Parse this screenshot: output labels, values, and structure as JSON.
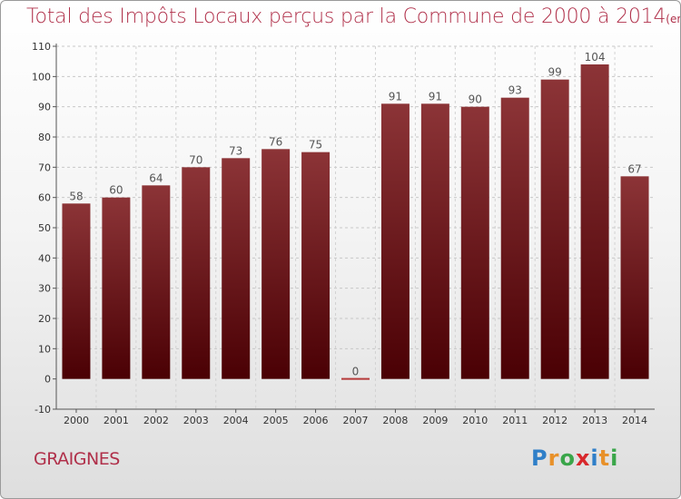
{
  "title": "Total des Impôts Locaux perçus par la Commune de 2000 à 2014",
  "subtitle": "(en milliers d'€)",
  "commune": "GRAIGNES",
  "logo": {
    "letters": [
      "P",
      "r",
      "o",
      "x",
      "i",
      "t",
      "i"
    ],
    "colors": [
      "#2f7fc8",
      "#e8912a",
      "#3aa64a",
      "#d8282c",
      "#2f7fc8",
      "#e8912a",
      "#3aa64a"
    ]
  },
  "chart_data": {
    "type": "bar",
    "categories": [
      "2000",
      "2001",
      "2002",
      "2003",
      "2004",
      "2005",
      "2006",
      "2007",
      "2008",
      "2009",
      "2010",
      "2011",
      "2012",
      "2013",
      "2014"
    ],
    "values": [
      58,
      60,
      64,
      70,
      73,
      76,
      75,
      0,
      91,
      91,
      90,
      93,
      99,
      104,
      67
    ],
    "ylim": [
      -10,
      110
    ],
    "yticks": [
      -10,
      0,
      10,
      20,
      30,
      40,
      50,
      60,
      70,
      80,
      90,
      100,
      110
    ],
    "grid": true,
    "colors": {
      "bar_top": "#8c3437",
      "bar_bottom": "#4a0004",
      "label": "#555555",
      "zero_line": "#b53a3a"
    }
  }
}
